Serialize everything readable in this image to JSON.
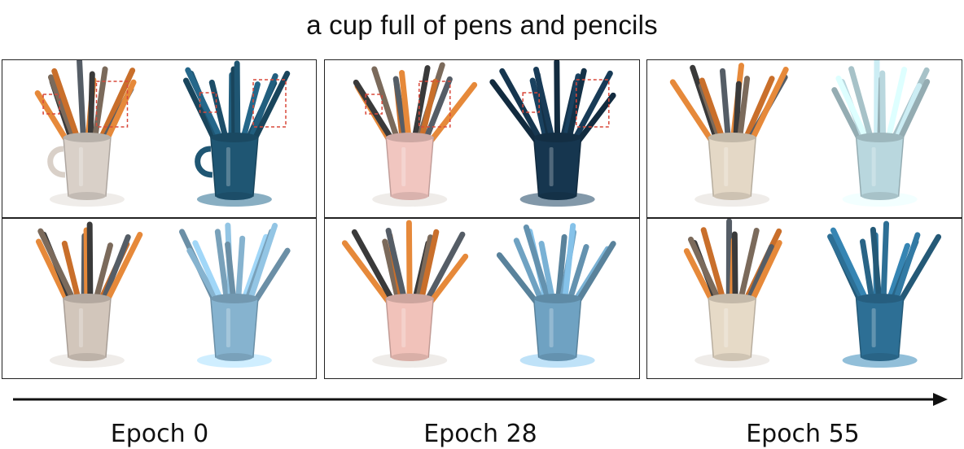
{
  "figure": {
    "title": "a cup full of pens and pencils",
    "epochs": [
      {
        "label": "Epoch 0",
        "rows": [
          {
            "cup_color": "#d9d0c8",
            "cup_style": "mug",
            "geom_color": "#1f5673",
            "highlight": true
          },
          {
            "cup_color": "#d2c6bb",
            "cup_style": "cup",
            "geom_color": "#86b3cf",
            "highlight": false
          }
        ]
      },
      {
        "label": "Epoch 28",
        "rows": [
          {
            "cup_color": "#f1c6c0",
            "cup_style": "cup",
            "geom_color": "#16364f",
            "highlight": true
          },
          {
            "cup_color": "#f1c2ba",
            "cup_style": "cup",
            "geom_color": "#6fa2c2",
            "highlight": false
          }
        ]
      },
      {
        "label": "Epoch 55",
        "rows": [
          {
            "cup_color": "#e4d8c6",
            "cup_style": "cup",
            "geom_color": "#b9d7de",
            "highlight": false
          },
          {
            "cup_color": "#e6dac7",
            "cup_style": "cup",
            "geom_color": "#2d6f95",
            "highlight": false
          }
        ]
      }
    ],
    "colors": {
      "pencil_orange": "#e6893a",
      "pencil_dark": "#3a3a3a",
      "highlight_box": "#d9483a",
      "arrow": "#111111"
    }
  }
}
